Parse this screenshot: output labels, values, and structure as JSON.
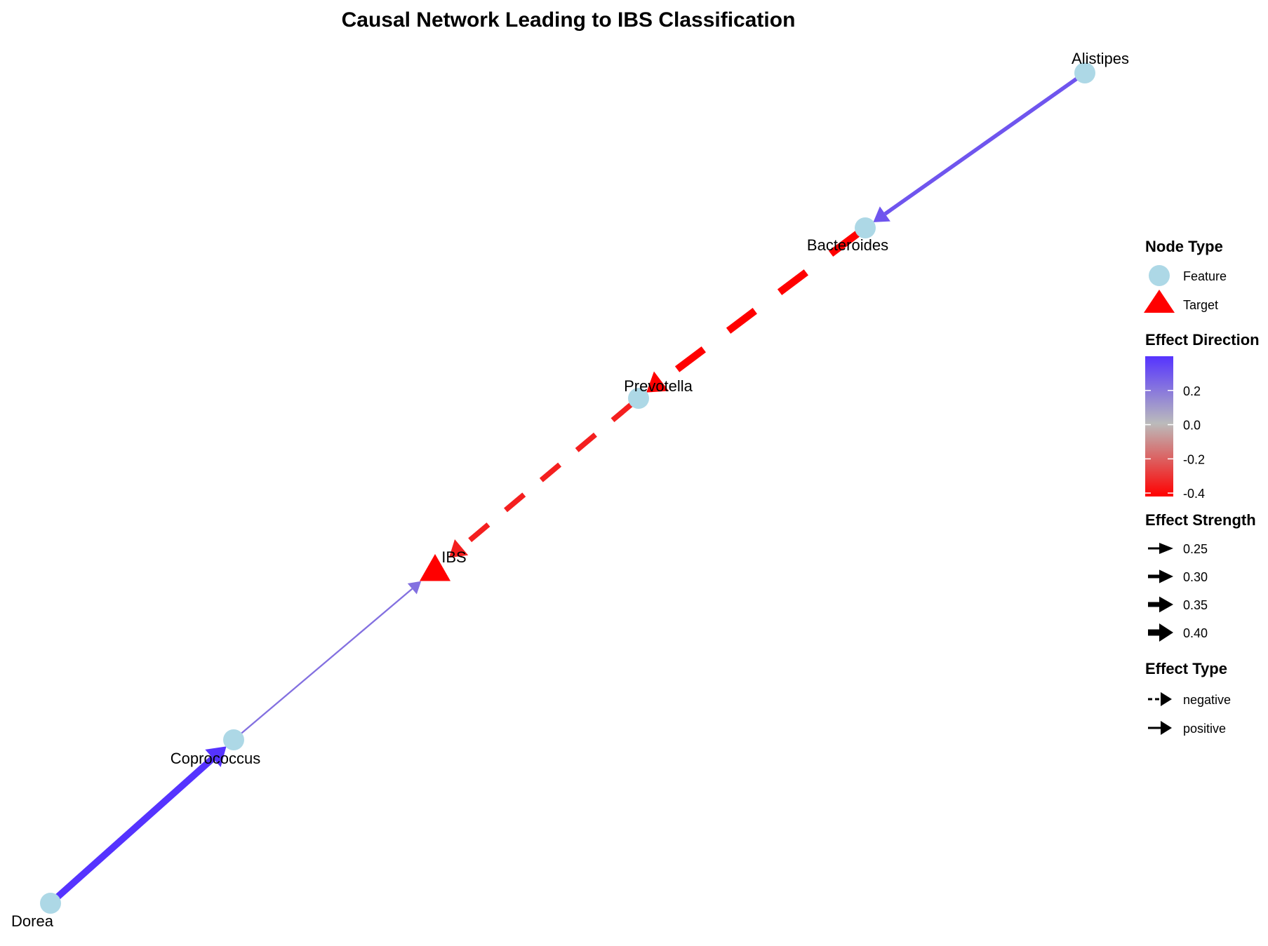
{
  "title": "Causal Network Leading to IBS Classification",
  "colors": {
    "feature_node": "#ADD8E6",
    "target_node": "#FF0000",
    "positive_high": "#5533FF",
    "neutral": "#BBBBBB",
    "negative_high": "#FF0000"
  },
  "nodes": [
    {
      "id": "alistipes",
      "label": "Alistipes",
      "type": "Feature"
    },
    {
      "id": "bacteroides",
      "label": "Bacteroides",
      "type": "Feature"
    },
    {
      "id": "prevotella",
      "label": "Prevotella",
      "type": "Feature"
    },
    {
      "id": "ibs",
      "label": "IBS",
      "type": "Target"
    },
    {
      "id": "coprococcus",
      "label": "Coprococcus",
      "type": "Feature"
    },
    {
      "id": "dorea",
      "label": "Dorea",
      "type": "Feature"
    }
  ],
  "edges": [
    {
      "from": "alistipes",
      "to": "bacteroides",
      "effect": 0.3,
      "strength": 0.3,
      "type": "positive"
    },
    {
      "from": "bacteroides",
      "to": "prevotella",
      "effect": -0.42,
      "strength": 0.42,
      "type": "negative"
    },
    {
      "from": "prevotella",
      "to": "ibs",
      "effect": -0.35,
      "strength": 0.35,
      "type": "negative"
    },
    {
      "from": "coprococcus",
      "to": "ibs",
      "effect": 0.22,
      "strength": 0.22,
      "type": "positive"
    },
    {
      "from": "dorea",
      "to": "coprococcus",
      "effect": 0.4,
      "strength": 0.4,
      "type": "positive"
    }
  ],
  "legend": {
    "node_type": {
      "title": "Node Type",
      "items": [
        {
          "label": "Feature",
          "shape": "circle"
        },
        {
          "label": "Target",
          "shape": "triangle"
        }
      ]
    },
    "effect_direction": {
      "title": "Effect Direction",
      "ticks": [
        "0.2",
        "0.0",
        "-0.2",
        "-0.4"
      ],
      "tick_values": [
        0.2,
        0.0,
        -0.2,
        -0.4
      ],
      "range": [
        -0.42,
        0.4
      ]
    },
    "effect_strength": {
      "title": "Effect Strength",
      "items": [
        "0.25",
        "0.30",
        "0.35",
        "0.40"
      ],
      "values": [
        0.25,
        0.3,
        0.35,
        0.4
      ]
    },
    "effect_type": {
      "title": "Effect Type",
      "items": [
        "negative",
        "positive"
      ]
    }
  }
}
